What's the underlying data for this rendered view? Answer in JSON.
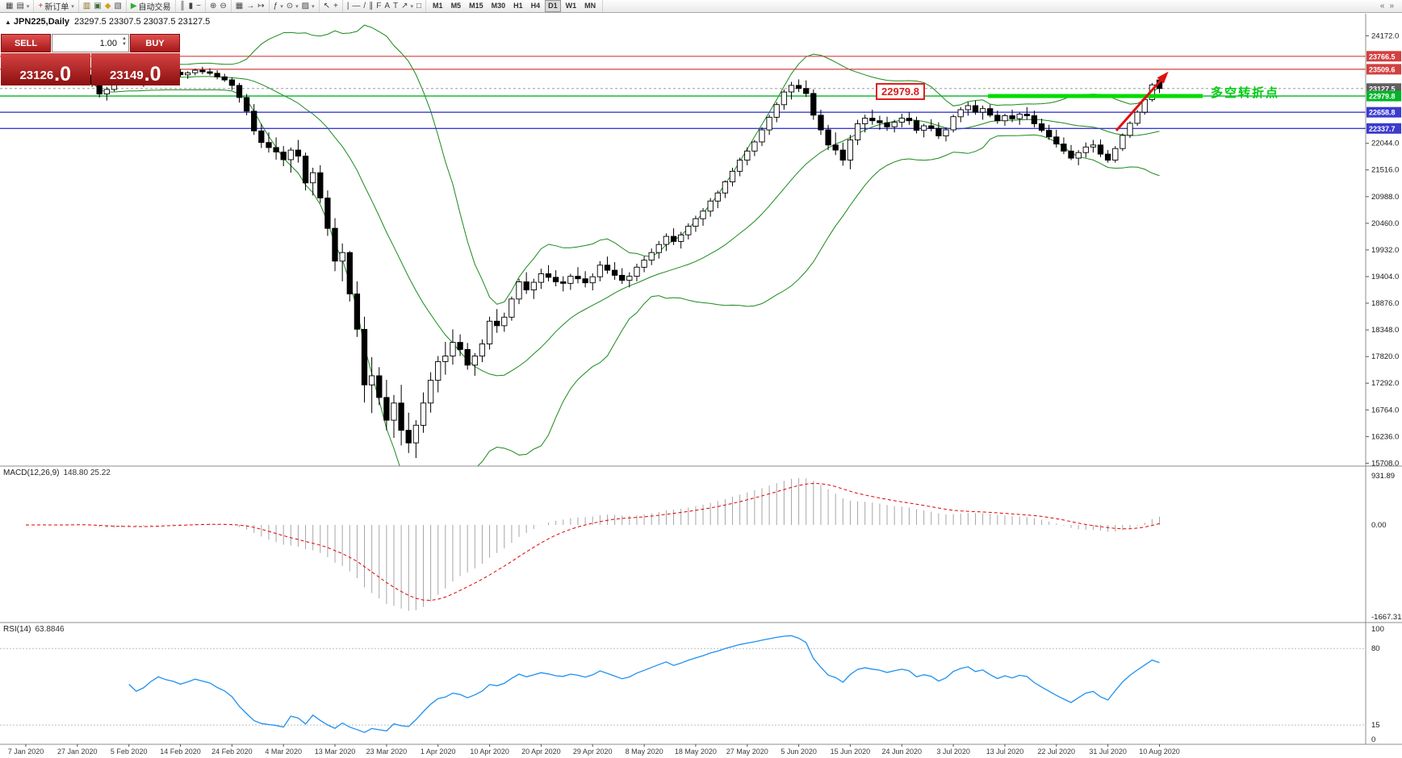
{
  "colors": {
    "up_candle": "#ffffff",
    "down_candle": "#000000",
    "wick": "#000000",
    "bollinger": "#1a8a1a",
    "macd_hist": "#a6a6a6",
    "macd_signal": "#e00000",
    "rsi_line": "#2090f0",
    "rsi_level": "#bdbdbd",
    "thick_green": "#00dc00",
    "arrow": "#e01010",
    "separator": "#8c8c8c",
    "tick_text": "#1a1a1a",
    "date_text": "#3a3a3a"
  },
  "toolbar": {
    "groups": [
      {
        "items": [
          {
            "name": "new-chart-icon",
            "glyph": "▦"
          },
          {
            "name": "chart-profiles-icon",
            "glyph": "▤",
            "caret": true
          }
        ]
      },
      {
        "items": [
          {
            "name": "new-order-button",
            "glyph": "+",
            "color": "#c23333",
            "label": "新订单",
            "caret": true
          }
        ]
      },
      {
        "items": [
          {
            "name": "market-watch-icon",
            "glyph": "▥",
            "color": "#8a6d1f"
          },
          {
            "name": "data-window-icon",
            "glyph": "▣",
            "color": "#3f6f3f"
          },
          {
            "name": "navigator-icon",
            "glyph": "◆",
            "color": "#d4a017"
          },
          {
            "name": "terminal-icon",
            "glyph": "▧",
            "color": "#555555"
          }
        ]
      },
      {
        "items": [
          {
            "name": "autotrading-button",
            "glyph": "▶",
            "color": "#2faf2f",
            "label": "自动交易"
          }
        ]
      },
      {
        "items": [
          {
            "name": "bar-chart-icon",
            "glyph": "║"
          },
          {
            "name": "candlestick-chart-icon",
            "glyph": "▮"
          },
          {
            "name": "line-chart-icon",
            "glyph": "~"
          }
        ]
      },
      {
        "items": [
          {
            "name": "zoom-in-icon",
            "glyph": "⊕"
          },
          {
            "name": "zoom-out-icon",
            "glyph": "⊖"
          }
        ]
      },
      {
        "items": [
          {
            "name": "tile-windows-icon",
            "glyph": "▦"
          },
          {
            "name": "auto-scroll-icon",
            "glyph": "→"
          },
          {
            "name": "chart-shift-icon",
            "glyph": "↦"
          }
        ]
      },
      {
        "items": [
          {
            "name": "indicators-icon",
            "glyph": "ƒ",
            "caret": true
          },
          {
            "name": "periods-icon",
            "glyph": "⊙",
            "caret": true
          },
          {
            "name": "templates-icon",
            "glyph": "▨",
            "caret": true
          }
        ]
      },
      {
        "items": [
          {
            "name": "cursor-icon",
            "glyph": "↖"
          },
          {
            "name": "crosshair-icon",
            "glyph": "+"
          }
        ]
      },
      {
        "items": [
          {
            "name": "vertical-line-icon",
            "glyph": "|"
          },
          {
            "name": "horizontal-line-icon",
            "glyph": "—"
          },
          {
            "name": "trendline-icon",
            "glyph": "/"
          },
          {
            "name": "channel-icon",
            "glyph": "∥"
          },
          {
            "name": "fibonacci-icon",
            "glyph": "F"
          },
          {
            "name": "text-icon",
            "glyph": "A"
          },
          {
            "name": "label-icon",
            "glyph": "T"
          },
          {
            "name": "arrow-tool-icon",
            "glyph": "↗",
            "caret": true
          },
          {
            "name": "shapes-icon",
            "glyph": "□"
          }
        ]
      }
    ],
    "timeframes": [
      {
        "label": "M1"
      },
      {
        "label": "M5"
      },
      {
        "label": "M15"
      },
      {
        "label": "M30"
      },
      {
        "label": "H1"
      },
      {
        "label": "H4"
      },
      {
        "label": "D1",
        "active": true
      },
      {
        "label": "W1"
      },
      {
        "label": "MN"
      }
    ],
    "right_items": [
      {
        "name": "toolbar-prev-icon",
        "glyph": "«"
      },
      {
        "name": "toolbar-next-icon",
        "glyph": "»"
      }
    ]
  },
  "chart": {
    "panel_toggle_glyph": "▲",
    "title_symbol": "JPN225,Daily",
    "title_ohlc": "23297.5 23307.5 23037.5 23127.5"
  },
  "trade_panel": {
    "sell_label": "SELL",
    "buy_label": "BUY",
    "volume": "1.00",
    "bid_main": "23126",
    "bid_big": ".0",
    "ask_main": "23149",
    "ask_big": ".0",
    "spin_up": "▲",
    "spin_down": "▼"
  },
  "annotations": {
    "price_callout": "22979.8",
    "turning_point": "多空转折点"
  },
  "price_scale": {
    "ticks": [
      24172.0,
      22044.0,
      21516.0,
      20988.0,
      20460.0,
      19932.0,
      19404.0,
      18876.0,
      18348.0,
      17820.0,
      17292.0,
      16764.0,
      16236.0,
      15708.0
    ]
  },
  "indicators": {
    "macd": {
      "label": "MACD(12,26,9)",
      "values": "148.80 25.22",
      "scale_max": "931.89",
      "scale_zero": "0.00",
      "scale_min": "-1667.31"
    },
    "rsi": {
      "label": "RSI(14)",
      "value": "63.8846",
      "scale_top": "100",
      "scale_hi": "80",
      "scale_lo": "15",
      "scale_bottom": "0",
      "levels": [
        80,
        15
      ]
    }
  },
  "time_axis": {
    "dates": [
      "7 Jan 2020",
      "27 Jan 2020",
      "5 Feb 2020",
      "14 Feb 2020",
      "24 Feb 2020",
      "4 Mar 2020",
      "13 Mar 2020",
      "23 Mar 2020",
      "1 Apr 2020",
      "10 Apr 2020",
      "20 Apr 2020",
      "29 Apr 2020",
      "8 May 2020",
      "18 May 2020",
      "27 May 2020",
      "5 Jun 2020",
      "15 Jun 2020",
      "24 Jun 2020",
      "3 Jul 2020",
      "13 Jul 2020",
      "22 Jul 2020",
      "31 Jul 2020",
      "10 Aug 2020"
    ]
  },
  "chart_data": {
    "type": "candlestick",
    "symbol": "JPN225",
    "timeframe": "Daily",
    "last_ohlc": {
      "open": 23297.5,
      "high": 23307.5,
      "low": 23037.5,
      "close": 23127.5
    },
    "overlays": [
      "Bollinger Bands (green)",
      "MACD(12,26,9)",
      "RSI(14)"
    ],
    "ylim": [
      15610,
      24610
    ],
    "levels": [
      {
        "price": 23766.5,
        "color": "#d24040",
        "width": 1.2
      },
      {
        "price": 23509.6,
        "color": "#d24040",
        "width": 1.2
      },
      {
        "price": 23127.5,
        "color": "#9a9a9a",
        "width": 1,
        "dash": "3 3",
        "box": "#5f5f5f"
      },
      {
        "price": 22979.8,
        "color": "#00b428",
        "width": 1.4
      },
      {
        "price": 22658.8,
        "color": "#3b3bd0",
        "width": 1.4
      },
      {
        "price": 22337.7,
        "color": "#3b3bd0",
        "width": 1.4
      }
    ],
    "thick_segment": {
      "price": 22979.8,
      "note": "bull/bear pivot zone"
    },
    "ohlc": [
      [
        23320,
        23430,
        23250,
        23400
      ],
      [
        23400,
        23480,
        23330,
        23450
      ],
      [
        23450,
        23520,
        23380,
        23410
      ],
      [
        23410,
        23470,
        23310,
        23340
      ],
      [
        23340,
        23410,
        23260,
        23390
      ],
      [
        23390,
        23460,
        23320,
        23430
      ],
      [
        23430,
        23510,
        23390,
        23480
      ],
      [
        23480,
        23540,
        23420,
        23450
      ],
      [
        23450,
        23500,
        23360,
        23390
      ],
      [
        23390,
        23430,
        23160,
        23210
      ],
      [
        23210,
        23290,
        22950,
        23020
      ],
      [
        23020,
        23160,
        22890,
        23110
      ],
      [
        23110,
        23300,
        23070,
        23260
      ],
      [
        23260,
        23390,
        23210,
        23340
      ],
      [
        23340,
        23430,
        23290,
        23390
      ],
      [
        23390,
        23430,
        23200,
        23250
      ],
      [
        23250,
        23340,
        23160,
        23310
      ],
      [
        23310,
        23460,
        23280,
        23430
      ],
      [
        23430,
        23570,
        23390,
        23530
      ],
      [
        23530,
        23600,
        23430,
        23480
      ],
      [
        23480,
        23550,
        23400,
        23450
      ],
      [
        23450,
        23510,
        23360,
        23400
      ],
      [
        23400,
        23470,
        23320,
        23440
      ],
      [
        23440,
        23520,
        23390,
        23490
      ],
      [
        23490,
        23560,
        23410,
        23460
      ],
      [
        23460,
        23530,
        23390,
        23430
      ],
      [
        23430,
        23490,
        23310,
        23360
      ],
      [
        23360,
        23420,
        23260,
        23300
      ],
      [
        23300,
        23350,
        23100,
        23190
      ],
      [
        23190,
        23240,
        22850,
        22950
      ],
      [
        22950,
        23020,
        22600,
        22680
      ],
      [
        22680,
        22820,
        22210,
        22290
      ],
      [
        22290,
        22430,
        21950,
        22060
      ],
      [
        22060,
        22260,
        21860,
        21960
      ],
      [
        21960,
        22160,
        21720,
        21870
      ],
      [
        21870,
        21990,
        21590,
        21720
      ],
      [
        21720,
        21960,
        21460,
        21910
      ],
      [
        21910,
        22110,
        21660,
        21790
      ],
      [
        21790,
        21860,
        21110,
        21260
      ],
      [
        21260,
        21560,
        21010,
        21460
      ],
      [
        21460,
        21610,
        20860,
        20960
      ],
      [
        20960,
        21110,
        20210,
        20360
      ],
      [
        20360,
        20560,
        19510,
        19710
      ],
      [
        19710,
        20060,
        19310,
        19880
      ],
      [
        19880,
        19910,
        18910,
        19060
      ],
      [
        19060,
        19310,
        18210,
        18360
      ],
      [
        18360,
        18610,
        16910,
        17260
      ],
      [
        17260,
        17810,
        16700,
        17440
      ],
      [
        17440,
        17610,
        16860,
        17010
      ],
      [
        17010,
        17360,
        16360,
        16560
      ],
      [
        16560,
        17060,
        16210,
        16900
      ],
      [
        16900,
        17260,
        16060,
        16360
      ],
      [
        16360,
        16710,
        15910,
        16110
      ],
      [
        16110,
        16560,
        15810,
        16460
      ],
      [
        16460,
        17110,
        16310,
        16900
      ],
      [
        16900,
        17510,
        16710,
        17350
      ],
      [
        17350,
        17830,
        17110,
        17720
      ],
      [
        17720,
        18110,
        17460,
        17830
      ],
      [
        17830,
        18360,
        17660,
        18100
      ],
      [
        18100,
        18260,
        17830,
        17960
      ],
      [
        17960,
        18090,
        17560,
        17650
      ],
      [
        17650,
        17890,
        17440,
        17830
      ],
      [
        17830,
        18160,
        17710,
        18070
      ],
      [
        18070,
        18610,
        17960,
        18520
      ],
      [
        18520,
        18760,
        18290,
        18430
      ],
      [
        18430,
        18690,
        18310,
        18600
      ],
      [
        18600,
        19010,
        18530,
        18960
      ],
      [
        18960,
        19360,
        18860,
        19300
      ],
      [
        19300,
        19490,
        19060,
        19140
      ],
      [
        19140,
        19360,
        18960,
        19290
      ],
      [
        19290,
        19560,
        19160,
        19460
      ],
      [
        19460,
        19630,
        19310,
        19390
      ],
      [
        19390,
        19530,
        19210,
        19300
      ],
      [
        19300,
        19410,
        19110,
        19270
      ],
      [
        19270,
        19460,
        19140,
        19410
      ],
      [
        19410,
        19590,
        19270,
        19360
      ],
      [
        19360,
        19510,
        19190,
        19280
      ],
      [
        19280,
        19470,
        19130,
        19400
      ],
      [
        19400,
        19710,
        19310,
        19630
      ],
      [
        19630,
        19800,
        19460,
        19530
      ],
      [
        19530,
        19690,
        19340,
        19430
      ],
      [
        19430,
        19570,
        19260,
        19330
      ],
      [
        19330,
        19490,
        19190,
        19410
      ],
      [
        19410,
        19660,
        19310,
        19590
      ],
      [
        19590,
        19810,
        19490,
        19730
      ],
      [
        19730,
        19960,
        19630,
        19880
      ],
      [
        19880,
        20110,
        19760,
        20040
      ],
      [
        20040,
        20260,
        19910,
        20200
      ],
      [
        20200,
        20360,
        20030,
        20100
      ],
      [
        20100,
        20290,
        19960,
        20230
      ],
      [
        20230,
        20460,
        20140,
        20400
      ],
      [
        20400,
        20610,
        20290,
        20550
      ],
      [
        20550,
        20760,
        20410,
        20700
      ],
      [
        20700,
        20960,
        20590,
        20900
      ],
      [
        20900,
        21110,
        20760,
        21060
      ],
      [
        21060,
        21310,
        20960,
        21280
      ],
      [
        21280,
        21560,
        21190,
        21490
      ],
      [
        21490,
        21760,
        21390,
        21710
      ],
      [
        21710,
        21960,
        21610,
        21890
      ],
      [
        21890,
        22110,
        21790,
        22070
      ],
      [
        22070,
        22360,
        21990,
        22310
      ],
      [
        22310,
        22610,
        22210,
        22560
      ],
      [
        22560,
        22860,
        22460,
        22810
      ],
      [
        22810,
        23110,
        22710,
        23060
      ],
      [
        23060,
        23260,
        22910,
        23190
      ],
      [
        23190,
        23310,
        23060,
        23130
      ],
      [
        23130,
        23290,
        22960,
        23030
      ],
      [
        23030,
        23110,
        22510,
        22600
      ],
      [
        22600,
        22710,
        22210,
        22310
      ],
      [
        22310,
        22410,
        21910,
        22010
      ],
      [
        22010,
        22260,
        21810,
        21910
      ],
      [
        21910,
        22060,
        21600,
        21710
      ],
      [
        21710,
        22210,
        21530,
        22110
      ],
      [
        22110,
        22510,
        22010,
        22430
      ],
      [
        22430,
        22610,
        22260,
        22540
      ],
      [
        22540,
        22710,
        22410,
        22490
      ],
      [
        22490,
        22590,
        22310,
        22450
      ],
      [
        22450,
        22570,
        22290,
        22370
      ],
      [
        22370,
        22510,
        22260,
        22460
      ],
      [
        22460,
        22630,
        22360,
        22540
      ],
      [
        22540,
        22660,
        22410,
        22490
      ],
      [
        22490,
        22570,
        22240,
        22300
      ],
      [
        22300,
        22430,
        22160,
        22390
      ],
      [
        22390,
        22520,
        22280,
        22340
      ],
      [
        22340,
        22460,
        22130,
        22190
      ],
      [
        22190,
        22360,
        22080,
        22310
      ],
      [
        22310,
        22610,
        22260,
        22570
      ],
      [
        22570,
        22760,
        22460,
        22710
      ],
      [
        22710,
        22860,
        22590,
        22790
      ],
      [
        22790,
        22890,
        22610,
        22660
      ],
      [
        22660,
        22790,
        22510,
        22730
      ],
      [
        22730,
        22810,
        22560,
        22600
      ],
      [
        22600,
        22690,
        22430,
        22490
      ],
      [
        22490,
        22630,
        22390,
        22590
      ],
      [
        22590,
        22710,
        22460,
        22530
      ],
      [
        22530,
        22660,
        22410,
        22620
      ],
      [
        22620,
        22760,
        22510,
        22590
      ],
      [
        22590,
        22690,
        22360,
        22430
      ],
      [
        22430,
        22530,
        22260,
        22300
      ],
      [
        22300,
        22410,
        22110,
        22170
      ],
      [
        22170,
        22310,
        21960,
        22030
      ],
      [
        22030,
        22160,
        21830,
        21890
      ],
      [
        21890,
        22010,
        21710,
        21750
      ],
      [
        21750,
        21910,
        21610,
        21860
      ],
      [
        21860,
        22060,
        21760,
        21970
      ],
      [
        21970,
        22110,
        21860,
        22010
      ],
      [
        22010,
        22120,
        21770,
        21830
      ],
      [
        21830,
        21910,
        21660,
        21710
      ],
      [
        21710,
        21990,
        21660,
        21940
      ],
      [
        21940,
        22240,
        21890,
        22200
      ],
      [
        22200,
        22480,
        22150,
        22440
      ],
      [
        22440,
        22700,
        22390,
        22660
      ],
      [
        22660,
        22950,
        22610,
        22910
      ],
      [
        22910,
        23240,
        22870,
        23200
      ],
      [
        23297.5,
        23307.5,
        23037.5,
        23127.5
      ]
    ]
  }
}
